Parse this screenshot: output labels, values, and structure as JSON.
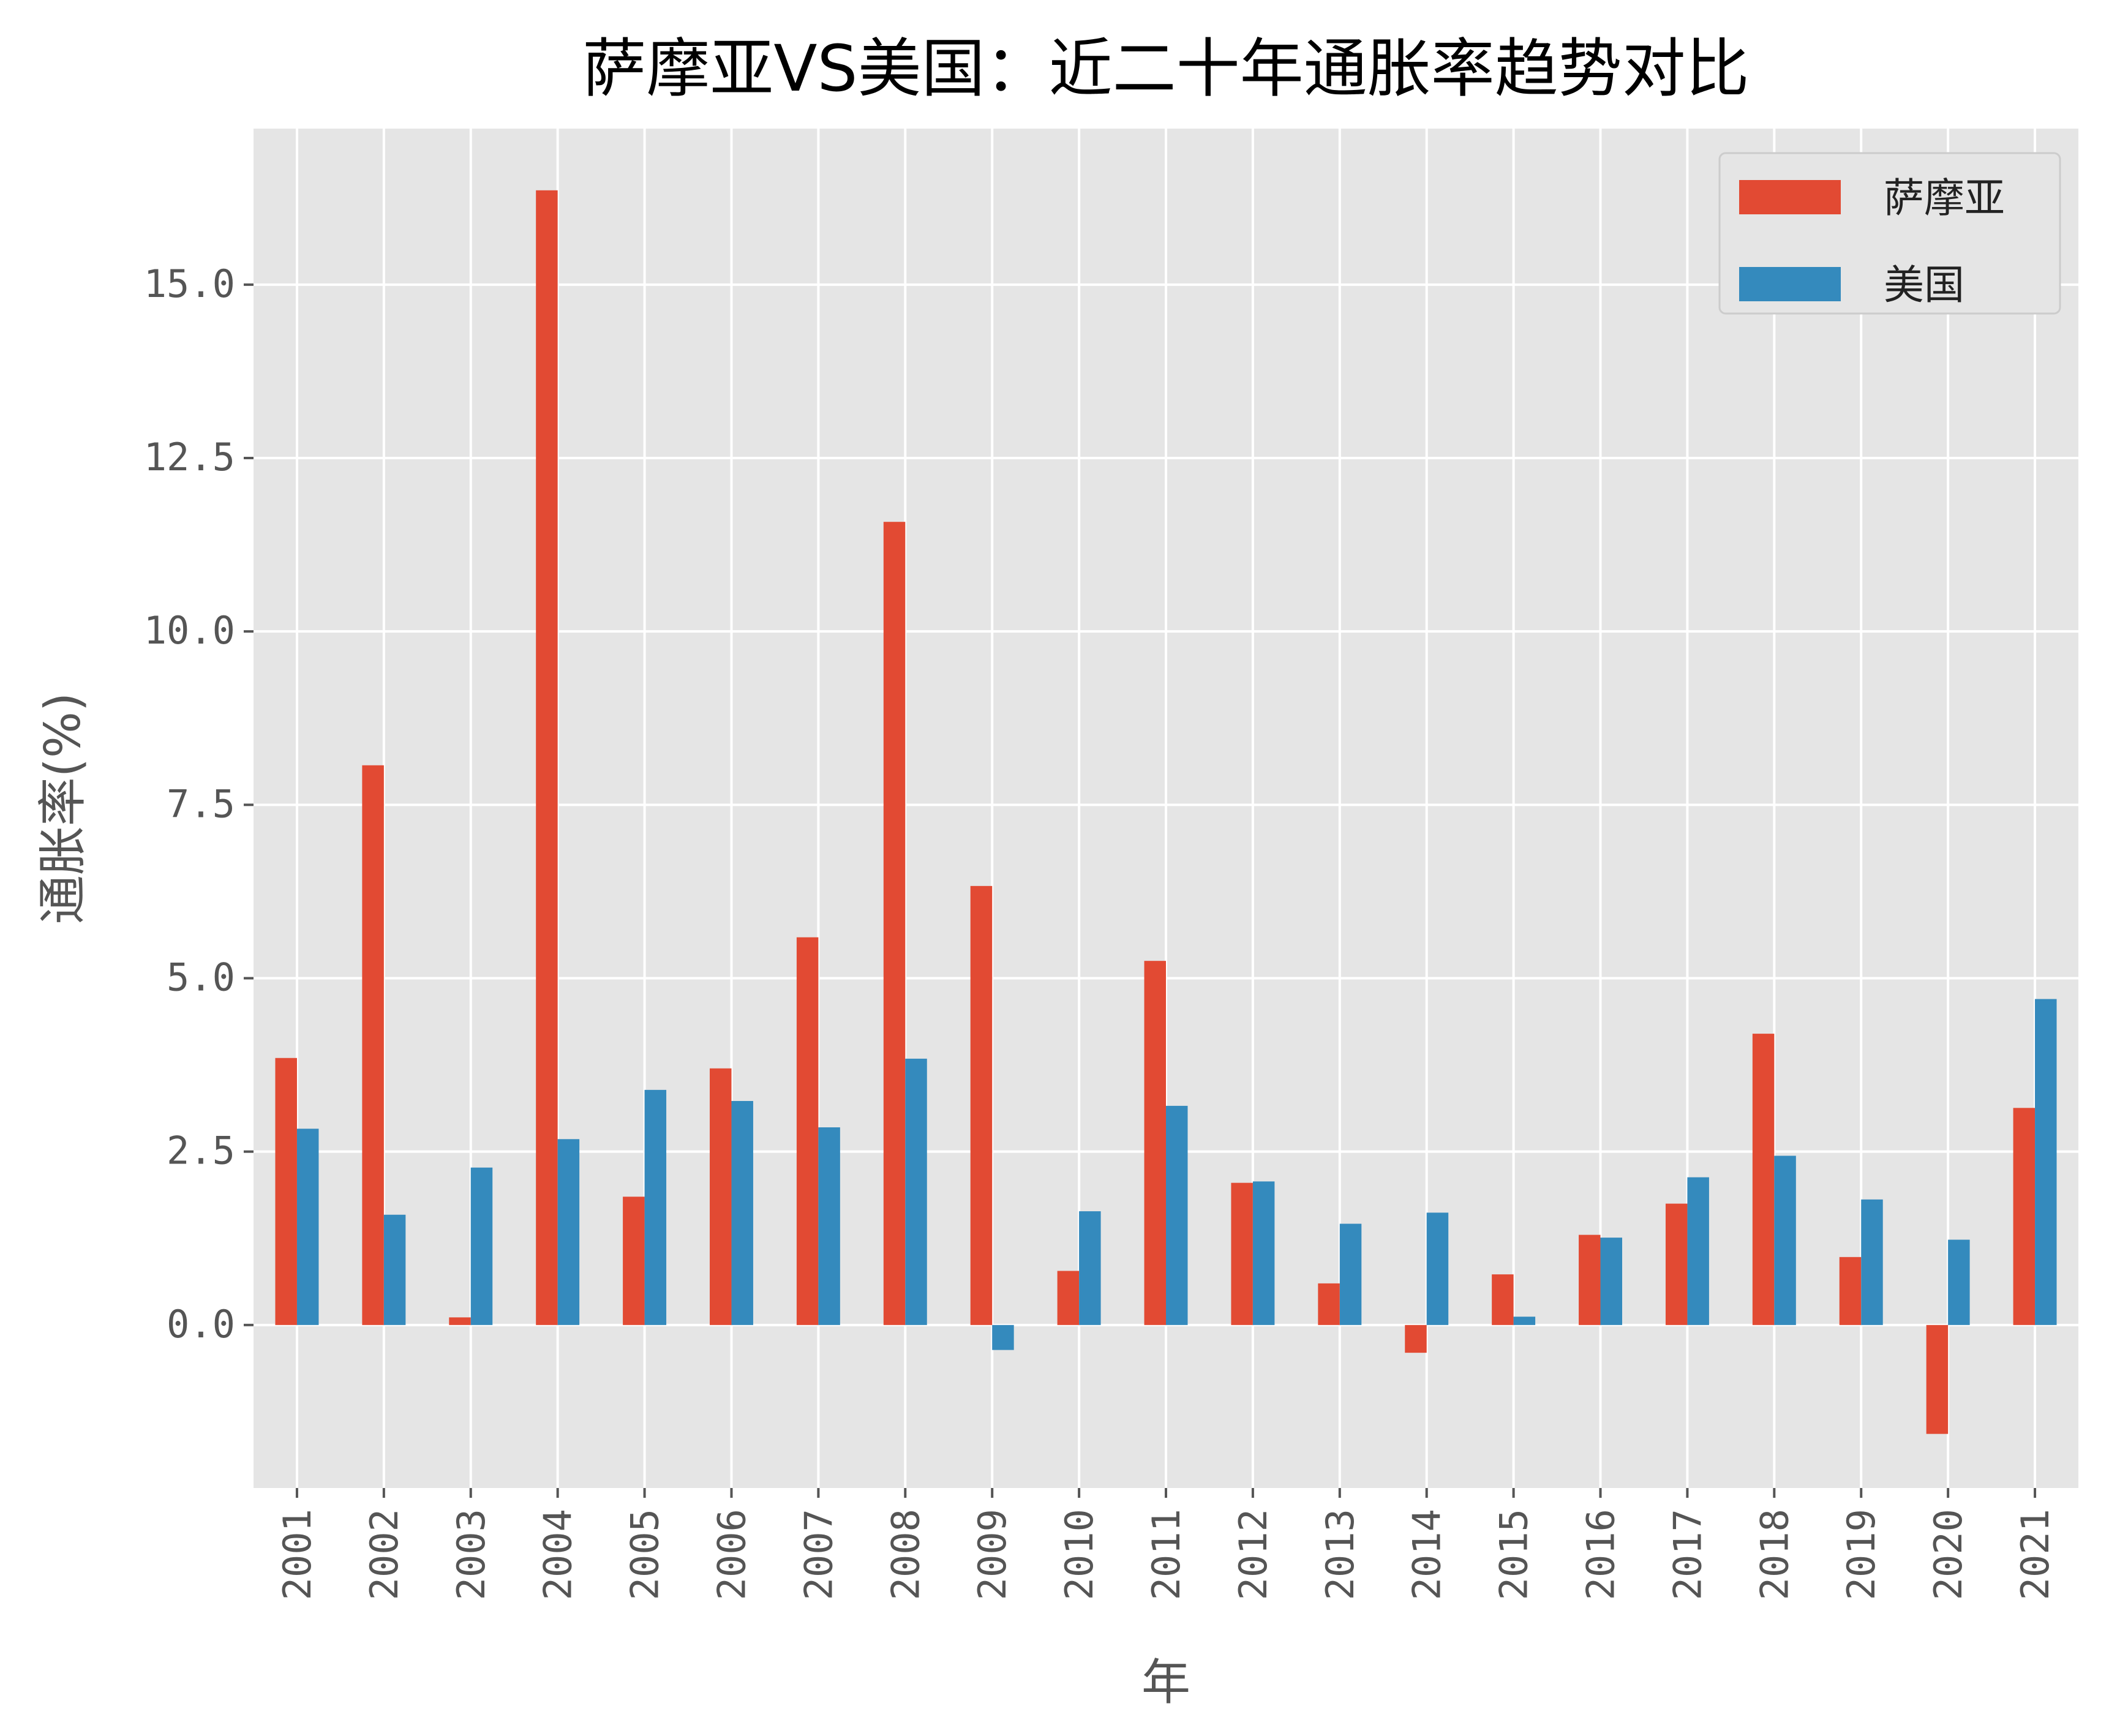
{
  "chart_data": {
    "type": "bar",
    "title": "萨摩亚VS美国：近二十年通胀率趋势对比",
    "xlabel": "年",
    "ylabel": "通胀率(%)",
    "categories": [
      "2001",
      "2002",
      "2003",
      "2004",
      "2005",
      "2006",
      "2007",
      "2008",
      "2009",
      "2010",
      "2011",
      "2012",
      "2013",
      "2014",
      "2015",
      "2016",
      "2017",
      "2018",
      "2019",
      "2020",
      "2021"
    ],
    "series": [
      {
        "name": "萨摩亚",
        "color": "#E24A33",
        "values": [
          3.85,
          8.07,
          0.11,
          16.36,
          1.85,
          3.7,
          5.59,
          11.58,
          6.33,
          0.78,
          5.25,
          2.05,
          0.6,
          -0.4,
          0.73,
          1.3,
          1.75,
          4.2,
          0.98,
          -1.57,
          3.13
        ]
      },
      {
        "name": "美国",
        "color": "#348ABD",
        "values": [
          2.83,
          1.59,
          2.27,
          2.68,
          3.39,
          3.23,
          2.85,
          3.84,
          -0.36,
          1.64,
          3.16,
          2.07,
          1.46,
          1.62,
          0.12,
          1.26,
          2.13,
          2.44,
          1.81,
          1.23,
          4.7
        ]
      }
    ],
    "yticks": [
      "0.0",
      "2.5",
      "5.0",
      "7.5",
      "10.0",
      "12.5",
      "15.0"
    ],
    "ylim": [
      -2.35,
      17.25
    ],
    "grid": true,
    "legend_position": "top-right",
    "plot_background": "#E5E5E5",
    "grid_color": "#FFFFFF"
  }
}
